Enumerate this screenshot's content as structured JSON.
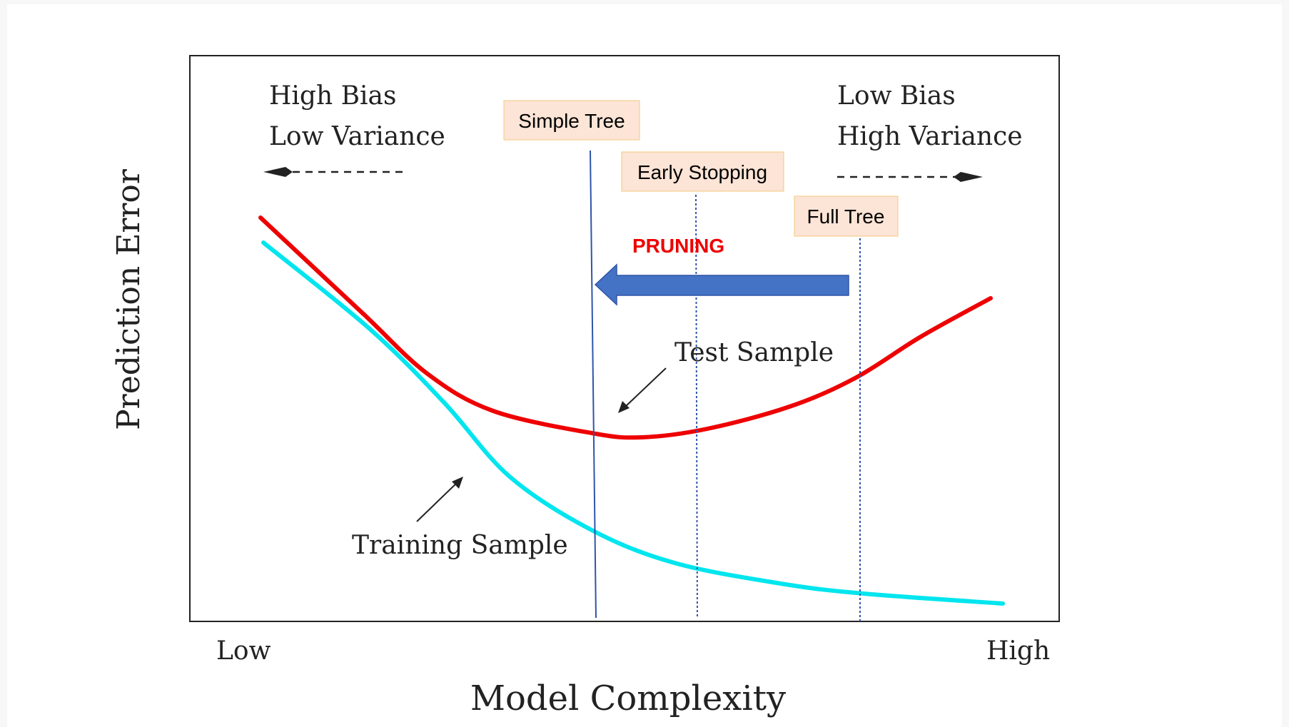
{
  "diagram": {
    "y_axis_label": "Prediction Error",
    "x_axis_label": "Model Complexity",
    "x_low": "Low",
    "x_high": "High",
    "left_note": [
      "High Bias",
      "Low Variance"
    ],
    "right_note": [
      "Low Bias",
      "High Variance"
    ],
    "markers": [
      "Simple Tree",
      "Early Stopping",
      "Full Tree"
    ],
    "arrow_label": "PRUNING",
    "curves": [
      "Test Sample",
      "Training Sample"
    ]
  }
}
